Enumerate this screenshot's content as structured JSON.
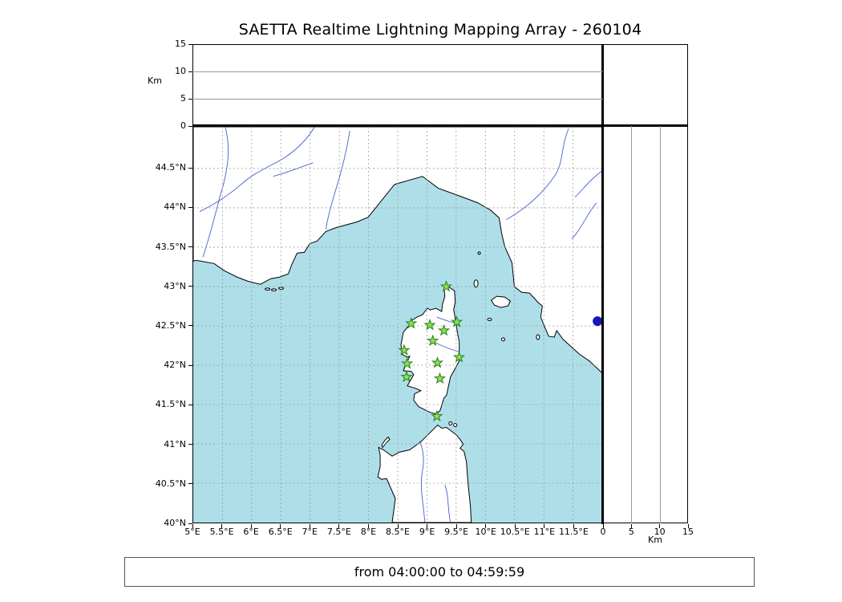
{
  "title": "SAETTA Realtime Lightning Mapping Array - 260104",
  "footer": {
    "time_range": "from 04:00:00 to 04:59:59"
  },
  "altitude_axis": {
    "label": "Km",
    "max": 15,
    "ticks": [
      {
        "v": 0,
        "label": "0"
      },
      {
        "v": 5,
        "label": "5"
      },
      {
        "v": 10,
        "label": "10"
      },
      {
        "v": 15,
        "label": "15"
      }
    ],
    "gridlines": [
      5,
      10
    ]
  },
  "map": {
    "lon_ticks": [
      {
        "v": 5,
        "label": "5°E"
      },
      {
        "v": 5.5,
        "label": "5.5°E"
      },
      {
        "v": 6,
        "label": "6°E"
      },
      {
        "v": 6.5,
        "label": "6.5°E"
      },
      {
        "v": 7,
        "label": "7°E"
      },
      {
        "v": 7.5,
        "label": "7.5°E"
      },
      {
        "v": 8,
        "label": "8°E"
      },
      {
        "v": 8.5,
        "label": "8.5°E"
      },
      {
        "v": 9,
        "label": "9°E"
      },
      {
        "v": 9.5,
        "label": "9.5°E"
      },
      {
        "v": 10,
        "label": "10°E"
      },
      {
        "v": 10.5,
        "label": "10.5°E"
      },
      {
        "v": 11,
        "label": "11°E"
      },
      {
        "v": 11.5,
        "label": "11.5°E"
      }
    ],
    "lat_ticks": [
      {
        "v": 40,
        "label": "40°N"
      },
      {
        "v": 40.5,
        "label": "40.5°N"
      },
      {
        "v": 41,
        "label": "41°N"
      },
      {
        "v": 41.5,
        "label": "41.5°N"
      },
      {
        "v": 42,
        "label": "42°N"
      },
      {
        "v": 42.5,
        "label": "42.5°N"
      },
      {
        "v": 43,
        "label": "43°N"
      },
      {
        "v": 43.5,
        "label": "43.5°N"
      },
      {
        "v": 44,
        "label": "44°N"
      },
      {
        "v": 44.5,
        "label": "44.5°N"
      }
    ]
  },
  "colors": {
    "sea": "#aedfe9",
    "land": "#ffffff",
    "coast": "#000000",
    "river": "#4560cc",
    "grid": "#999999",
    "station_fill": "#8fe04a",
    "station_edge": "#267d22",
    "edge_marker": "#1515b8"
  },
  "chart_data": [
    {
      "type": "scatter",
      "name": "altitude-vs-longitude",
      "ylabel": "Km",
      "ylim": [
        0,
        15
      ],
      "yticks": [
        0,
        5,
        10,
        15
      ],
      "xlim": [
        5,
        12
      ],
      "series": [
        {
          "name": "lightning-sources",
          "points": []
        }
      ]
    },
    {
      "type": "scatter",
      "name": "map-lon-lat",
      "xlim": [
        5,
        12
      ],
      "ylim": [
        40,
        45.03
      ],
      "xticks": [
        5,
        5.5,
        6,
        6.5,
        7,
        7.5,
        8,
        8.5,
        9,
        9.5,
        10,
        10.5,
        11,
        11.5
      ],
      "yticks": [
        40,
        40.5,
        41,
        41.5,
        42,
        42.5,
        43,
        43.5,
        44,
        44.5
      ],
      "series": [
        {
          "name": "lma-stations",
          "marker": "star",
          "color": "#8fe04a",
          "points": [
            [
              9.33,
              43.0
            ],
            [
              8.73,
              42.53
            ],
            [
              9.05,
              42.51
            ],
            [
              9.51,
              42.55
            ],
            [
              9.29,
              42.44
            ],
            [
              9.1,
              42.31
            ],
            [
              8.61,
              42.19
            ],
            [
              9.55,
              42.1
            ],
            [
              8.66,
              42.02
            ],
            [
              9.18,
              42.03
            ],
            [
              8.65,
              41.85
            ],
            [
              9.22,
              41.83
            ],
            [
              9.17,
              41.35
            ]
          ]
        },
        {
          "name": "edge-marker",
          "marker": "circle",
          "color": "#1515b8",
          "points": [
            [
              11.92,
              42.56
            ]
          ]
        }
      ]
    },
    {
      "type": "scatter",
      "name": "altitude-vs-latitude",
      "xlabel": "Km",
      "xlim": [
        0,
        15
      ],
      "xticks": [
        0,
        5,
        10,
        15
      ],
      "ylim": [
        40,
        45.03
      ],
      "series": [
        {
          "name": "lightning-sources",
          "points": []
        }
      ]
    }
  ]
}
